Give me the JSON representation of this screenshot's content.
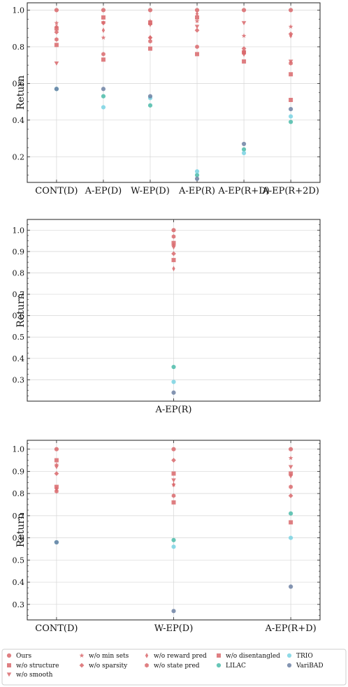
{
  "colors": {
    "red": "#d9696c",
    "teal": "#4cbcaa",
    "cyan": "#7ad3e3",
    "navy": "#6e82a4",
    "grid": "#d6d6d6",
    "axis": "#222222"
  },
  "legend": [
    {
      "label": "Ours",
      "marker": "circle",
      "color": "red"
    },
    {
      "label": "w/o structure",
      "marker": "square",
      "color": "red"
    },
    {
      "label": "w/o smooth",
      "marker": "triangle",
      "color": "red"
    },
    {
      "label": "w/o min sets",
      "marker": "star",
      "color": "red"
    },
    {
      "label": "w/o sparsity",
      "marker": "diamond",
      "color": "red"
    },
    {
      "label": "w/o reward pred",
      "marker": "thin-diamond",
      "color": "red"
    },
    {
      "label": "w/o state pred",
      "marker": "hexagon",
      "color": "red"
    },
    {
      "label": "w/o disentangled",
      "marker": "square",
      "color": "red"
    },
    {
      "label": "LILAC",
      "marker": "circle",
      "color": "teal"
    },
    {
      "label": "TRIO",
      "marker": "circle",
      "color": "cyan"
    },
    {
      "label": "VariBAD",
      "marker": "circle",
      "color": "navy"
    }
  ],
  "chart_data": [
    {
      "type": "scatter",
      "ylabel": "Return",
      "ylim": [
        0.06,
        1.04
      ],
      "yticks": [
        0.2,
        0.4,
        0.6,
        0.8,
        1.0
      ],
      "categories": [
        "CONT(D)",
        "A-EP(D)",
        "W-EP(D)",
        "A-EP(R)",
        "A-EP(R+D)",
        "A-EP(R+2D)"
      ],
      "series": [
        {
          "name": "Ours",
          "values": [
            1.0,
            1.0,
            1.0,
            1.0,
            1.0,
            1.0
          ]
        },
        {
          "name": "w/o structure",
          "values": [
            0.81,
            0.96,
            0.93,
            0.96,
            0.72,
            0.65
          ]
        },
        {
          "name": "w/o smooth",
          "values": [
            0.71,
            0.93,
            0.92,
            0.91,
            0.93,
            0.72
          ]
        },
        {
          "name": "w/o min sets",
          "values": [
            0.93,
            0.85,
            0.94,
            0.94,
            0.86,
            0.91
          ]
        },
        {
          "name": "w/o sparsity",
          "values": [
            0.88,
            0.93,
            0.85,
            0.89,
            0.79,
            0.87
          ]
        },
        {
          "name": "w/o reward pred",
          "values": [
            0.91,
            0.89,
            0.85,
            0.98,
            0.76,
            0.86
          ]
        },
        {
          "name": "w/o state pred",
          "values": [
            0.84,
            0.76,
            0.83,
            0.8,
            0.77,
            0.71
          ]
        },
        {
          "name": "w/o disentangled",
          "values": [
            0.9,
            0.73,
            0.79,
            0.76,
            0.77,
            0.51
          ]
        },
        {
          "name": "LILAC",
          "values": [
            0.57,
            0.53,
            0.48,
            0.1,
            0.24,
            0.39
          ]
        },
        {
          "name": "TRIO",
          "values": [
            0.57,
            0.47,
            0.52,
            0.12,
            0.22,
            0.42
          ]
        },
        {
          "name": "VariBAD",
          "values": [
            0.57,
            0.57,
            0.53,
            0.08,
            0.27,
            0.46
          ]
        }
      ]
    },
    {
      "type": "scatter",
      "ylabel": "Return",
      "ylim": [
        0.2,
        1.05
      ],
      "yticks": [
        0.3,
        0.4,
        0.5,
        0.6,
        0.7,
        0.8,
        0.9,
        1.0
      ],
      "categories": [
        "A-EP(R)"
      ],
      "series": [
        {
          "name": "Ours",
          "values": [
            1.0
          ]
        },
        {
          "name": "w/o structure",
          "values": [
            0.94
          ]
        },
        {
          "name": "w/o smooth",
          "values": [
            0.92
          ]
        },
        {
          "name": "w/o min sets",
          "values": [
            0.93
          ]
        },
        {
          "name": "w/o sparsity",
          "values": [
            0.89
          ]
        },
        {
          "name": "w/o reward pred",
          "values": [
            0.82
          ]
        },
        {
          "name": "w/o state pred",
          "values": [
            0.97
          ]
        },
        {
          "name": "w/o disentangled",
          "values": [
            0.86
          ]
        },
        {
          "name": "LILAC",
          "values": [
            0.36
          ]
        },
        {
          "name": "TRIO",
          "values": [
            0.29
          ]
        },
        {
          "name": "VariBAD",
          "values": [
            0.24
          ]
        }
      ]
    },
    {
      "type": "scatter",
      "ylabel": "Return",
      "ylim": [
        0.23,
        1.04
      ],
      "yticks": [
        0.3,
        0.4,
        0.5,
        0.6,
        0.7,
        0.8,
        0.9,
        1.0
      ],
      "categories": [
        "CONT(D)",
        "W-EP(D)",
        "A-EP(R+D)"
      ],
      "series": [
        {
          "name": "Ours",
          "values": [
            1.0,
            1.0,
            1.0
          ]
        },
        {
          "name": "w/o structure",
          "values": [
            0.95,
            0.89,
            0.89
          ]
        },
        {
          "name": "w/o smooth",
          "values": [
            0.92,
            0.86,
            0.92
          ]
        },
        {
          "name": "w/o min sets",
          "values": [
            0.93,
            0.84,
            0.96
          ]
        },
        {
          "name": "w/o sparsity",
          "values": [
            0.89,
            0.95,
            0.79
          ]
        },
        {
          "name": "w/o reward pred",
          "values": [
            0.82,
            0.84,
            0.88
          ]
        },
        {
          "name": "w/o state pred",
          "values": [
            0.81,
            0.79,
            0.83
          ]
        },
        {
          "name": "w/o disentangled",
          "values": [
            0.83,
            0.76,
            0.67
          ]
        },
        {
          "name": "LILAC",
          "values": [
            0.58,
            0.59,
            0.71
          ]
        },
        {
          "name": "TRIO",
          "values": [
            0.58,
            0.56,
            0.6
          ]
        },
        {
          "name": "VariBAD",
          "values": [
            0.58,
            0.27,
            0.38
          ]
        }
      ]
    }
  ]
}
